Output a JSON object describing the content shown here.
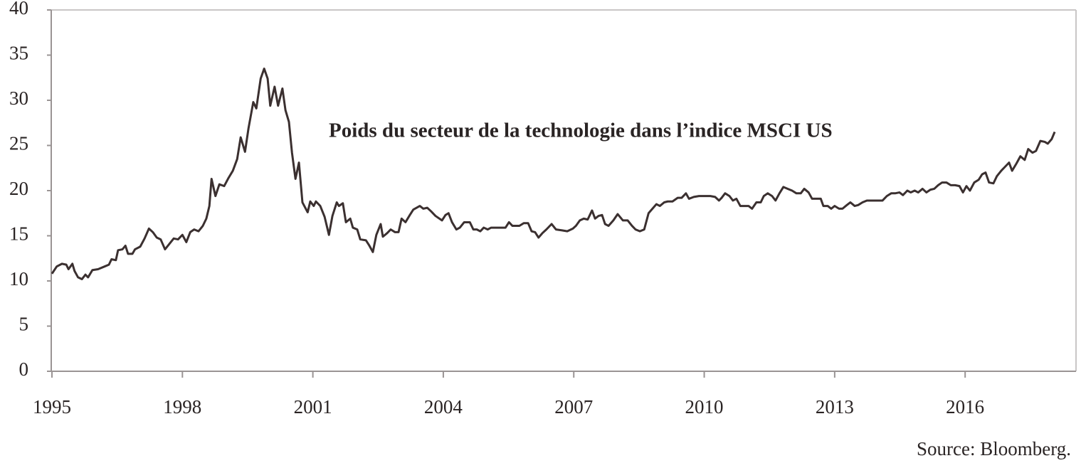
{
  "chart_data": {
    "type": "line",
    "title": "Poids du secteur de la technologie dans l’indice MSCI US",
    "source": "Source: Bloomberg.",
    "color": "#3b3030",
    "xlim": [
      1995,
      2018.55
    ],
    "xticks": [
      1995,
      1998,
      2001,
      2004,
      2007,
      2010,
      2013,
      2016
    ],
    "ylim": [
      0,
      40
    ],
    "yticks": [
      0,
      5,
      10,
      15,
      20,
      25,
      30,
      35,
      40
    ],
    "x": [
      1995.0,
      1995.11,
      1995.23,
      1995.33,
      1995.38,
      1995.47,
      1995.52,
      1995.6,
      1995.69,
      1995.77,
      1995.83,
      1995.93,
      1996.06,
      1996.21,
      1996.31,
      1996.37,
      1996.47,
      1996.52,
      1996.62,
      1996.69,
      1996.75,
      1996.85,
      1996.91,
      1997.03,
      1997.13,
      1997.23,
      1997.32,
      1997.41,
      1997.5,
      1997.6,
      1997.7,
      1997.8,
      1997.9,
      1998.0,
      1998.09,
      1998.18,
      1998.27,
      1998.37,
      1998.47,
      1998.55,
      1998.62,
      1998.67,
      1998.76,
      1998.85,
      1998.96,
      1999.06,
      1999.16,
      1999.26,
      1999.34,
      1999.44,
      1999.52,
      1999.63,
      1999.7,
      1999.8,
      1999.88,
      1999.96,
      2000.02,
      2000.12,
      2000.2,
      2000.3,
      2000.37,
      2000.45,
      2000.52,
      2000.6,
      2000.68,
      2000.76,
      2000.88,
      2000.94,
      2001.02,
      2001.07,
      2001.17,
      2001.27,
      2001.37,
      2001.45,
      2001.55,
      2001.6,
      2001.69,
      2001.76,
      2001.86,
      2001.92,
      2002.02,
      2002.09,
      2002.22,
      2002.3,
      2002.38,
      2002.46,
      2002.56,
      2002.61,
      2002.71,
      2002.79,
      2002.89,
      2002.97,
      2003.04,
      2003.13,
      2003.23,
      2003.31,
      2003.46,
      2003.54,
      2003.63,
      2003.72,
      2003.82,
      2003.97,
      2004.05,
      2004.12,
      2004.2,
      2004.3,
      2004.38,
      2004.48,
      2004.61,
      2004.69,
      2004.77,
      2004.85,
      2004.93,
      2005.02,
      2005.1,
      2005.26,
      2005.43,
      2005.51,
      2005.59,
      2005.75,
      2005.85,
      2005.95,
      2006.03,
      2006.11,
      2006.19,
      2006.28,
      2006.37,
      2006.49,
      2006.59,
      2006.73,
      2006.85,
      2006.98,
      2007.05,
      2007.14,
      2007.23,
      2007.32,
      2007.42,
      2007.49,
      2007.57,
      2007.65,
      2007.72,
      2007.8,
      2007.91,
      2008.01,
      2008.13,
      2008.24,
      2008.34,
      2008.42,
      2008.52,
      2008.62,
      2008.72,
      2008.81,
      2008.9,
      2008.98,
      2009.08,
      2009.16,
      2009.27,
      2009.39,
      2009.48,
      2009.58,
      2009.65,
      2009.76,
      2009.88,
      2010.01,
      2010.14,
      2010.25,
      2010.34,
      2010.4,
      2010.48,
      2010.58,
      2010.66,
      2010.74,
      2010.83,
      2010.92,
      2011.02,
      2011.1,
      2011.2,
      2011.3,
      2011.37,
      2011.46,
      2011.56,
      2011.64,
      2011.73,
      2011.82,
      2011.92,
      2012.02,
      2012.12,
      2012.22,
      2012.3,
      2012.4,
      2012.48,
      2012.59,
      2012.68,
      2012.74,
      2012.84,
      2012.92,
      2013.0,
      2013.1,
      2013.18,
      2013.28,
      2013.36,
      2013.46,
      2013.54,
      2013.64,
      2013.74,
      2013.9,
      2014.1,
      2014.2,
      2014.3,
      2014.39,
      2014.49,
      2014.57,
      2014.67,
      2014.75,
      2014.84,
      2014.92,
      2015.02,
      2015.11,
      2015.2,
      2015.29,
      2015.38,
      2015.47,
      2015.57,
      2015.67,
      2015.77,
      2015.87,
      2015.95,
      2016.03,
      2016.11,
      2016.21,
      2016.31,
      2016.39,
      2016.47,
      2016.55,
      2016.65,
      2016.73,
      2016.83,
      2016.91,
      2017.01,
      2017.08,
      2017.18,
      2017.27,
      2017.37,
      2017.45,
      2017.55,
      2017.63,
      2017.73,
      2017.83,
      2017.9,
      2017.99,
      2018.06
    ],
    "values": [
      10.8,
      11.6,
      11.9,
      11.8,
      11.3,
      11.9,
      11.1,
      10.4,
      10.2,
      10.7,
      10.4,
      11.2,
      11.3,
      11.6,
      11.8,
      12.4,
      12.3,
      13.4,
      13.5,
      13.9,
      13.0,
      13.0,
      13.5,
      13.8,
      14.7,
      15.8,
      15.4,
      14.8,
      14.6,
      13.5,
      14.1,
      14.7,
      14.6,
      15.1,
      14.3,
      15.4,
      15.7,
      15.5,
      16.1,
      16.9,
      18.3,
      21.3,
      19.4,
      20.7,
      20.5,
      21.4,
      22.2,
      23.5,
      25.9,
      24.3,
      26.9,
      29.8,
      29.1,
      32.4,
      33.5,
      32.4,
      29.4,
      31.5,
      29.4,
      31.3,
      28.9,
      27.6,
      24.2,
      21.3,
      23.1,
      18.7,
      17.6,
      18.8,
      18.3,
      18.8,
      18.3,
      17.1,
      15.1,
      17.2,
      18.7,
      18.3,
      18.6,
      16.5,
      16.9,
      15.9,
      15.7,
      14.6,
      14.5,
      13.9,
      13.2,
      15.1,
      16.3,
      14.9,
      15.3,
      15.7,
      15.4,
      15.4,
      16.9,
      16.5,
      17.3,
      17.9,
      18.3,
      18.0,
      18.1,
      17.7,
      17.2,
      16.7,
      17.3,
      17.5,
      16.5,
      15.7,
      15.9,
      16.5,
      16.5,
      15.7,
      15.7,
      15.5,
      15.9,
      15.7,
      15.9,
      15.9,
      15.9,
      16.5,
      16.1,
      16.1,
      16.4,
      16.4,
      15.5,
      15.4,
      14.8,
      15.3,
      15.7,
      16.3,
      15.7,
      15.6,
      15.5,
      15.8,
      16.1,
      16.7,
      16.9,
      16.8,
      17.8,
      16.9,
      17.2,
      17.3,
      16.3,
      16.1,
      16.7,
      17.4,
      16.7,
      16.7,
      16.1,
      15.7,
      15.5,
      15.7,
      17.5,
      18.0,
      18.5,
      18.3,
      18.7,
      18.8,
      18.8,
      19.2,
      19.2,
      19.7,
      19.1,
      19.3,
      19.4,
      19.4,
      19.4,
      19.3,
      18.9,
      19.2,
      19.7,
      19.4,
      18.9,
      19.1,
      18.3,
      18.3,
      18.3,
      18.0,
      18.7,
      18.7,
      19.4,
      19.7,
      19.4,
      18.9,
      19.7,
      20.4,
      20.2,
      20.0,
      19.7,
      19.7,
      20.2,
      19.8,
      19.1,
      19.1,
      19.1,
      18.3,
      18.3,
      18.0,
      18.3,
      18.0,
      18.0,
      18.4,
      18.7,
      18.3,
      18.4,
      18.7,
      18.9,
      18.9,
      18.9,
      19.4,
      19.7,
      19.7,
      19.8,
      19.5,
      20.0,
      19.8,
      20.0,
      19.8,
      20.2,
      19.8,
      20.1,
      20.2,
      20.6,
      20.9,
      20.9,
      20.6,
      20.6,
      20.5,
      19.8,
      20.5,
      20.0,
      20.9,
      21.2,
      21.8,
      22.0,
      20.9,
      20.8,
      21.6,
      22.2,
      22.6,
      23.1,
      22.2,
      23.0,
      23.8,
      23.4,
      24.6,
      24.2,
      24.4,
      25.5,
      25.4,
      25.2,
      25.7,
      26.5
    ]
  }
}
